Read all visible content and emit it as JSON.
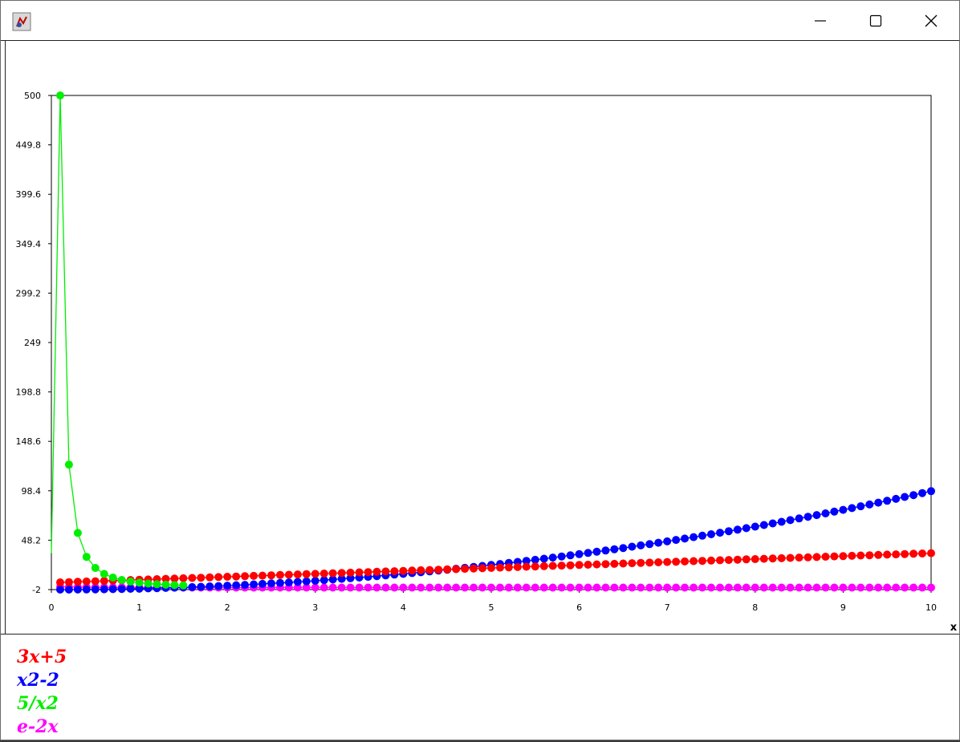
{
  "window": {
    "icon": "java-app-icon",
    "controls": [
      "minimize-icon",
      "maximize-icon",
      "close-icon"
    ]
  },
  "chart_data": {
    "type": "scatter",
    "style": "line-with-markers",
    "xlabel": "x",
    "ylabel": "",
    "xlim": [
      0,
      10
    ],
    "ylim": [
      -2,
      500
    ],
    "x_ticks": [
      "0",
      "1",
      "2",
      "3",
      "4",
      "5",
      "6",
      "7",
      "8",
      "9",
      "10"
    ],
    "y_ticks": [
      "-2",
      "48.2",
      "98.4",
      "148.6",
      "198.8",
      "249",
      "299.2",
      "349.4",
      "399.6",
      "449.8",
      "500"
    ],
    "grid": false,
    "legend_position": "bottom-left",
    "x_step": 0.1,
    "series": [
      {
        "name": "3x+5",
        "color": "#ff0000",
        "formula": "3*x+5",
        "x_range": [
          0.1,
          10
        ]
      },
      {
        "name": "x2-2",
        "color": "#0000ff",
        "formula": "x*x-2",
        "x_range": [
          0.1,
          10
        ]
      },
      {
        "name": "5/x2",
        "color": "#00ee00",
        "formula": "5/(x*x)",
        "x_range": [
          0.1,
          1.5
        ],
        "start_point": [
          0,
          35
        ]
      },
      {
        "name": "e-2x",
        "color": "#ff00ff",
        "formula": "exp(-2*x)",
        "x_range": [
          0.1,
          10
        ]
      }
    ]
  }
}
